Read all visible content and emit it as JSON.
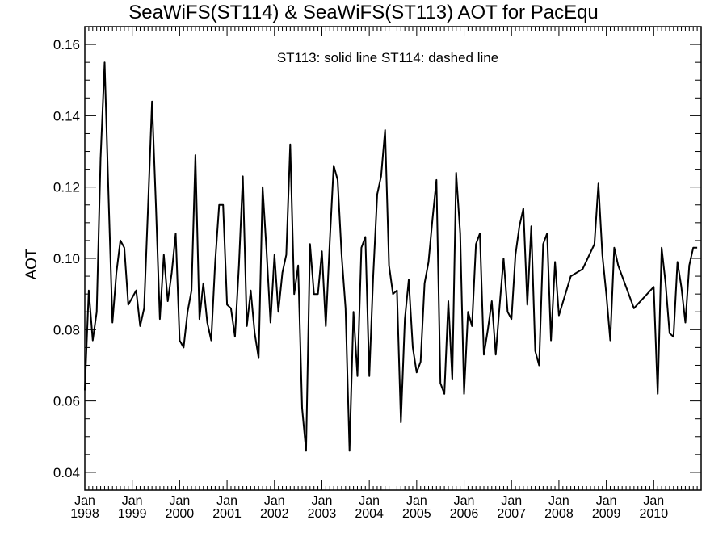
{
  "chart_data": {
    "type": "line",
    "title": "SeaWiFS(ST114) & SeaWiFS(ST113)  AOT for PacEqu",
    "annotation": "ST113: solid line   ST114: dashed line",
    "ylabel": "AOT",
    "xlabel": "",
    "ylim": [
      0.035,
      0.165
    ],
    "yticks": [
      "0.04",
      "0.06",
      "0.08",
      "0.10",
      "0.12",
      "0.14",
      "0.16"
    ],
    "ytick_values": [
      0.04,
      0.06,
      0.08,
      0.1,
      0.12,
      0.14,
      0.16
    ],
    "xlim_years": [
      1998.0,
      2011.0
    ],
    "xticks": [
      {
        "month": "Jan",
        "year": "1998",
        "value": 1998
      },
      {
        "month": "Jan",
        "year": "1999",
        "value": 1999
      },
      {
        "month": "Jan",
        "year": "2000",
        "value": 2000
      },
      {
        "month": "Jan",
        "year": "2001",
        "value": 2001
      },
      {
        "month": "Jan",
        "year": "2002",
        "value": 2002
      },
      {
        "month": "Jan",
        "year": "2003",
        "value": 2003
      },
      {
        "month": "Jan",
        "year": "2004",
        "value": 2004
      },
      {
        "month": "Jan",
        "year": "2005",
        "value": 2005
      },
      {
        "month": "Jan",
        "year": "2006",
        "value": 2006
      },
      {
        "month": "Jan",
        "year": "2007",
        "value": 2007
      },
      {
        "month": "Jan",
        "year": "2008",
        "value": 2008
      },
      {
        "month": "Jan",
        "year": "2009",
        "value": 2009
      },
      {
        "month": "Jan",
        "year": "2010",
        "value": 2010
      }
    ],
    "series": [
      {
        "color": "#000000",
        "style": "solid",
        "x": [
          1998.0,
          1998.083,
          1998.167,
          1998.25,
          1998.333,
          1998.417,
          1998.5,
          1998.583,
          1998.667,
          1998.75,
          1998.833,
          1998.917,
          1999.0,
          1999.083,
          1999.167,
          1999.25,
          1999.333,
          1999.417,
          1999.5,
          1999.583,
          1999.667,
          1999.75,
          1999.833,
          1999.917,
          2000.0,
          2000.083,
          2000.167,
          2000.25,
          2000.333,
          2000.417,
          2000.5,
          2000.583,
          2000.667,
          2000.75,
          2000.833,
          2000.917,
          2001.0,
          2001.083,
          2001.167,
          2001.25,
          2001.333,
          2001.417,
          2001.5,
          2001.583,
          2001.667,
          2001.75,
          2001.833,
          2001.917,
          2002.0,
          2002.083,
          2002.167,
          2002.25,
          2002.333,
          2002.417,
          2002.5,
          2002.583,
          2002.667,
          2002.75,
          2002.833,
          2002.917,
          2003.0,
          2003.083,
          2003.167,
          2003.25,
          2003.333,
          2003.417,
          2003.5,
          2003.583,
          2003.667,
          2003.75,
          2003.833,
          2003.917,
          2004.0,
          2004.083,
          2004.167,
          2004.25,
          2004.333,
          2004.417,
          2004.5,
          2004.583,
          2004.667,
          2004.75,
          2004.833,
          2004.917,
          2005.0,
          2005.083,
          2005.167,
          2005.25,
          2005.333,
          2005.417,
          2005.5,
          2005.583,
          2005.667,
          2005.75,
          2005.833,
          2005.917,
          2006.0,
          2006.083,
          2006.167,
          2006.25,
          2006.333,
          2006.417,
          2006.5,
          2006.583,
          2006.667,
          2006.75,
          2006.833,
          2006.917,
          2007.0,
          2007.083,
          2007.167,
          2007.25,
          2007.333,
          2007.417,
          2007.5,
          2007.583,
          2007.667,
          2007.75,
          2007.833,
          2007.917,
          2008.0,
          2008.25,
          2008.5,
          2008.75,
          2008.833,
          2008.917,
          2009.0,
          2009.083,
          2009.167,
          2009.25,
          2009.583,
          2010.0,
          2010.083,
          2010.167,
          2010.25,
          2010.333,
          2010.417,
          2010.5,
          2010.583,
          2010.667,
          2010.75,
          2010.833,
          2010.917
        ],
        "y": [
          0.063,
          0.091,
          0.077,
          0.085,
          0.128,
          0.155,
          0.118,
          0.082,
          0.096,
          0.105,
          0.103,
          0.087,
          0.089,
          0.091,
          0.081,
          0.086,
          0.114,
          0.144,
          0.115,
          0.083,
          0.101,
          0.088,
          0.096,
          0.107,
          0.077,
          0.075,
          0.085,
          0.091,
          0.129,
          0.083,
          0.093,
          0.082,
          0.077,
          0.099,
          0.115,
          0.115,
          0.087,
          0.086,
          0.078,
          0.098,
          0.123,
          0.081,
          0.091,
          0.079,
          0.072,
          0.12,
          0.102,
          0.082,
          0.101,
          0.085,
          0.096,
          0.101,
          0.132,
          0.09,
          0.098,
          0.058,
          0.046,
          0.104,
          0.09,
          0.09,
          0.102,
          0.081,
          0.105,
          0.126,
          0.122,
          0.101,
          0.086,
          0.046,
          0.085,
          0.067,
          0.103,
          0.106,
          0.067,
          0.095,
          0.118,
          0.123,
          0.136,
          0.098,
          0.09,
          0.091,
          0.054,
          0.083,
          0.094,
          0.075,
          0.068,
          0.071,
          0.093,
          0.099,
          0.111,
          0.122,
          0.065,
          0.062,
          0.088,
          0.066,
          0.124,
          0.107,
          0.062,
          0.085,
          0.081,
          0.104,
          0.107,
          0.073,
          0.08,
          0.088,
          0.073,
          0.087,
          0.1,
          0.085,
          0.083,
          0.101,
          0.109,
          0.114,
          0.087,
          0.109,
          0.074,
          0.07,
          0.104,
          0.107,
          0.077,
          0.099,
          0.084,
          0.095,
          0.097,
          0.104,
          0.121,
          0.101,
          0.09,
          0.077,
          0.103,
          0.098,
          0.086,
          0.092,
          0.062,
          0.103,
          0.093,
          0.079,
          0.078,
          0.099,
          0.092,
          0.082,
          0.098,
          0.103,
          0.103
        ]
      }
    ]
  }
}
